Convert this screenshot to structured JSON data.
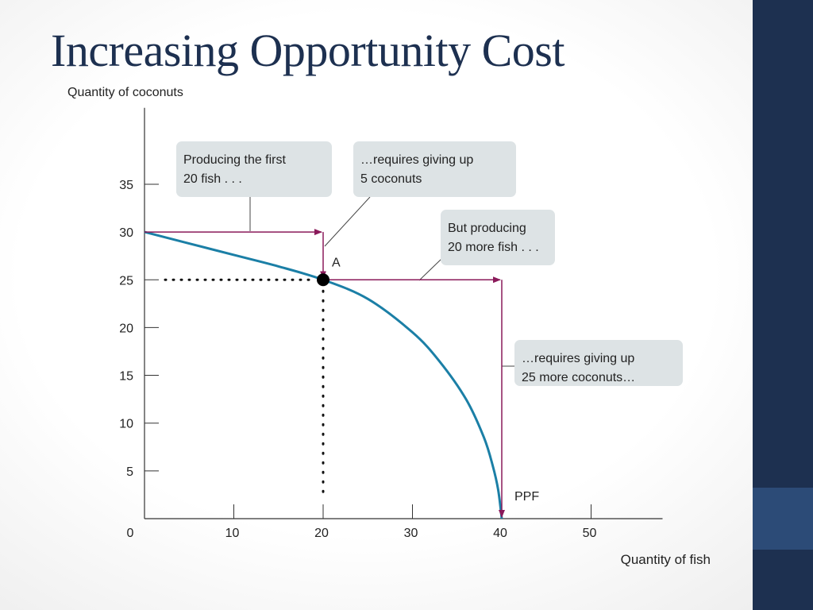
{
  "slide": {
    "title": "Increasing Opportunity Cost"
  },
  "colors": {
    "sidebar": "#1d3050",
    "sidebar_accent": "#2c4b77",
    "curve": "#1b7fa6",
    "arrow": "#8a1a5a",
    "callout": "#dde3e5",
    "title": "#1d3050"
  },
  "chart_data": {
    "type": "line",
    "xlabel": "Quantity of fish",
    "ylabel": "Quantity of coconuts",
    "xlim": [
      0,
      58
    ],
    "ylim": [
      0,
      43
    ],
    "x_ticks": [
      10,
      20,
      30,
      40,
      50
    ],
    "y_ticks": [
      5,
      10,
      15,
      20,
      25,
      30,
      35
    ],
    "origin_label": "0",
    "grid": false,
    "series": [
      {
        "name": "PPF",
        "points": [
          [
            0,
            30
          ],
          [
            5,
            28.8
          ],
          [
            10,
            27.6
          ],
          [
            15,
            26.4
          ],
          [
            20,
            25
          ],
          [
            25,
            23
          ],
          [
            30,
            19.5
          ],
          [
            33,
            16.5
          ],
          [
            36,
            12.5
          ],
          [
            38,
            8.5
          ],
          [
            39,
            5.5
          ],
          [
            39.6,
            3
          ],
          [
            40,
            0
          ]
        ]
      }
    ],
    "point_A": {
      "label": "A",
      "x": 20,
      "y": 25
    },
    "steps": [
      {
        "from": [
          0,
          30
        ],
        "to": [
          20,
          30
        ],
        "down_to": 25
      },
      {
        "from": [
          20,
          25
        ],
        "to": [
          40,
          25
        ],
        "down_to": 0
      }
    ],
    "callouts": [
      {
        "lines": [
          "Producing the first",
          "20 fish . . ."
        ]
      },
      {
        "lines": [
          "…requires giving up",
          "5 coconuts"
        ]
      },
      {
        "lines": [
          "But producing",
          "20 more fish . . ."
        ]
      },
      {
        "lines": [
          "…requires giving up",
          "25 more coconuts…"
        ]
      }
    ]
  }
}
